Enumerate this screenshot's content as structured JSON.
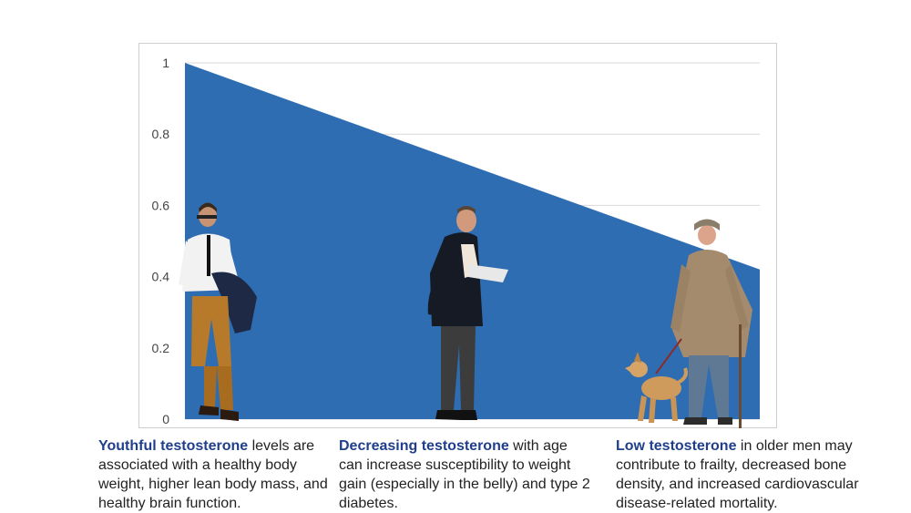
{
  "chart_data": {
    "type": "area",
    "x": [
      0,
      1
    ],
    "series": [
      {
        "values": [
          1,
          0.42
        ]
      }
    ],
    "ylim": [
      0,
      1
    ],
    "yticks": [
      "0",
      "0.2",
      "0.4",
      "0.6",
      "0.8",
      "1"
    ],
    "grid": true,
    "fill_color": "#2e6db1",
    "grid_color": "#d9d9d9"
  },
  "figures": [
    {
      "icon": "young-man-figure"
    },
    {
      "icon": "middle-aged-man-figure"
    },
    {
      "icon": "elderly-man-with-dog-figure"
    }
  ],
  "captions": [
    {
      "lead": "Youthful testosterone",
      "rest": " levels are associated with a healthy body weight, higher lean body mass, and healthy brain function."
    },
    {
      "lead": "Decreasing testosterone",
      "rest": " with age can increase susceptibility to weight gain (especially in the belly) and type 2 diabetes."
    },
    {
      "lead": "Low testosterone",
      "rest": " in older men may contribute to frailty, decreased bone density, and increased cardiovascular disease-related mortality."
    }
  ],
  "colors": {
    "lead_text": "#1f3f8c"
  }
}
